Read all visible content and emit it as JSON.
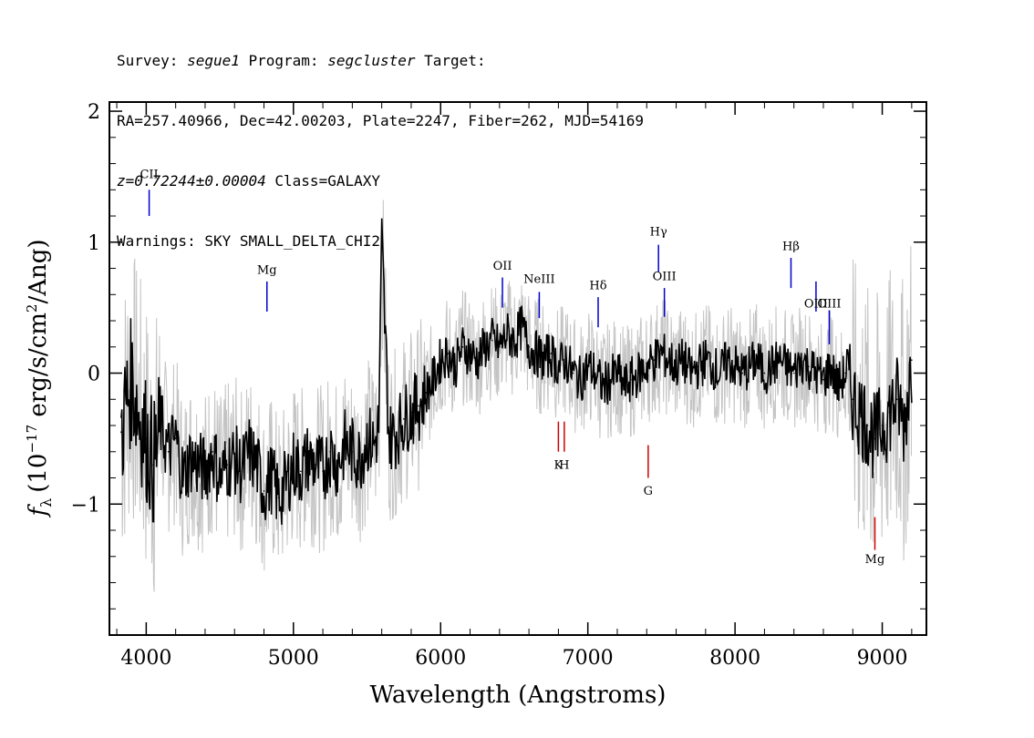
{
  "header": {
    "line1": {
      "survey_label": "Survey: ",
      "survey": "segue1",
      "program_label": " Program: ",
      "program": "segcluster",
      "target_label": " Target:"
    },
    "line2": "RA=257.40966, Dec=42.00203, Plate=2247, Fiber=262, MJD=54169",
    "line3": {
      "z": "z=0.72244±0.00004",
      "class": " Class=GALAXY"
    },
    "line4": "Warnings: SKY SMALL_DELTA_CHI2"
  },
  "chart_data": {
    "type": "line",
    "xlabel": "Wavelength (Angstroms)",
    "ylabel": "f_λ (10^-17 erg/s/cm²/Ang)",
    "ylabel_parts": {
      "f": "f",
      "sub": "λ",
      "pre": "(10",
      "exp": "−17",
      "mid": " erg/s/cm",
      "exp2": "2",
      "post": "/Ang)"
    },
    "xlim": [
      3750,
      9300
    ],
    "ylim": [
      -2.0,
      2.07
    ],
    "xticks": [
      4000,
      5000,
      6000,
      7000,
      8000,
      9000
    ],
    "yticks": [
      -1,
      0,
      1,
      2
    ],
    "ytick_labels": [
      "−1",
      "0",
      "1",
      "2"
    ],
    "grid": false,
    "series": [
      {
        "color": "#000000",
        "x": [
          3830,
          3870,
          3900,
          3950,
          4000,
          4050,
          4100,
          4150,
          4200,
          4250,
          4300,
          4350,
          4400,
          4450,
          4500,
          4550,
          4600,
          4650,
          4700,
          4750,
          4800,
          4850,
          4900,
          4950,
          5000,
          5050,
          5100,
          5150,
          5200,
          5250,
          5300,
          5350,
          5400,
          5450,
          5500,
          5550,
          5580,
          5600,
          5650,
          5700,
          5750,
          5800,
          5850,
          5900,
          5950,
          6000,
          6050,
          6100,
          6150,
          6200,
          6250,
          6300,
          6350,
          6400,
          6450,
          6500,
          6550,
          6600,
          6650,
          6700,
          6750,
          6800,
          6850,
          6900,
          6950,
          7000,
          7050,
          7100,
          7150,
          7200,
          7250,
          7300,
          7350,
          7400,
          7450,
          7500,
          7550,
          7600,
          7650,
          7700,
          7750,
          7800,
          7850,
          7900,
          7950,
          8000,
          8050,
          8100,
          8150,
          8200,
          8250,
          8300,
          8350,
          8400,
          8450,
          8500,
          8550,
          8600,
          8650,
          8700,
          8750,
          8800,
          8850,
          8900,
          8950,
          9000,
          9050,
          9100,
          9150,
          9200
        ],
        "y": [
          -0.45,
          -0.2,
          -0.05,
          -0.3,
          -0.5,
          -0.7,
          -0.4,
          -0.6,
          -0.5,
          -0.8,
          -0.65,
          -0.7,
          -0.75,
          -0.6,
          -0.8,
          -0.7,
          -0.65,
          -0.75,
          -0.6,
          -0.7,
          -0.9,
          -0.8,
          -0.95,
          -0.85,
          -0.7,
          -0.75,
          -0.65,
          -0.7,
          -0.75,
          -0.6,
          -0.7,
          -0.55,
          -0.6,
          -0.65,
          -0.5,
          -0.55,
          -0.4,
          1.0,
          -0.5,
          -0.45,
          -0.35,
          -0.3,
          -0.25,
          -0.15,
          -0.05,
          0.1,
          0.15,
          0.05,
          0.2,
          0.15,
          0.1,
          0.2,
          0.25,
          0.2,
          0.3,
          0.25,
          0.35,
          0.2,
          0.15,
          0.1,
          0.15,
          0.05,
          0.1,
          0.0,
          -0.05,
          0.05,
          0.0,
          -0.1,
          -0.05,
          0.0,
          -0.1,
          -0.05,
          0.0,
          0.05,
          0.1,
          0.15,
          0.1,
          0.05,
          0.1,
          0.0,
          0.05,
          0.1,
          0.05,
          0.0,
          0.1,
          0.05,
          0.0,
          0.05,
          0.1,
          0.0,
          0.05,
          0.1,
          0.05,
          0.0,
          0.1,
          0.05,
          0.0,
          -0.05,
          0.05,
          -0.1,
          0.0,
          -0.2,
          -0.3,
          -0.4,
          -0.5,
          -0.4,
          -0.3,
          -0.2,
          -0.4,
          0.1
        ]
      }
    ],
    "lines": [
      {
        "label": "CII",
        "x": 4020,
        "color": "#0000cc",
        "y1": 1.4,
        "y2": 1.2,
        "label_y": 1.49
      },
      {
        "label": "Mg",
        "x": 4820,
        "color": "#0000cc",
        "y1": 0.7,
        "y2": 0.47,
        "label_y": 0.76
      },
      {
        "label": "OII",
        "x": 6420,
        "color": "#0000cc",
        "y1": 0.73,
        "y2": 0.5,
        "label_y": 0.79
      },
      {
        "label": "NeIII",
        "x": 6670,
        "color": "#0000cc",
        "y1": 0.62,
        "y2": 0.42,
        "label_y": 0.69
      },
      {
        "label": "Hδ",
        "x": 7070,
        "color": "#0000cc",
        "y1": 0.58,
        "y2": 0.35,
        "label_y": 0.64
      },
      {
        "label": "Hγ",
        "x": 7480,
        "color": "#0000cc",
        "y1": 0.98,
        "y2": 0.77,
        "label_y": 1.05
      },
      {
        "label": "OIII",
        "x": 7520,
        "color": "#0000cc",
        "y1": 0.65,
        "y2": 0.43,
        "label_y": 0.71
      },
      {
        "label": "Hβ",
        "x": 8380,
        "color": "#0000cc",
        "y1": 0.88,
        "y2": 0.65,
        "label_y": 0.94
      },
      {
        "label": "OIII",
        "x": 8550,
        "color": "#0000cc",
        "y1": 0.7,
        "y2": 0.47,
        "label_y": 0.5
      },
      {
        "label": "OIII",
        "x": 8640,
        "color": "#0000cc",
        "y1": 0.48,
        "y2": 0.22,
        "label_y": 0.5
      },
      {
        "label": "K",
        "x": 6800,
        "color": "#cc0000",
        "y1": -0.37,
        "y2": -0.6,
        "label_y": -0.73
      },
      {
        "label": "H",
        "x": 6840,
        "color": "#cc0000",
        "y1": -0.37,
        "y2": -0.6,
        "label_y": -0.73
      },
      {
        "label": "G",
        "x": 7410,
        "color": "#cc0000",
        "y1": -0.55,
        "y2": -0.8,
        "label_y": -0.93
      },
      {
        "label": "Mg",
        "x": 8950,
        "color": "#cc0000",
        "y1": -1.1,
        "y2": -1.35,
        "label_y": -1.45
      }
    ]
  }
}
